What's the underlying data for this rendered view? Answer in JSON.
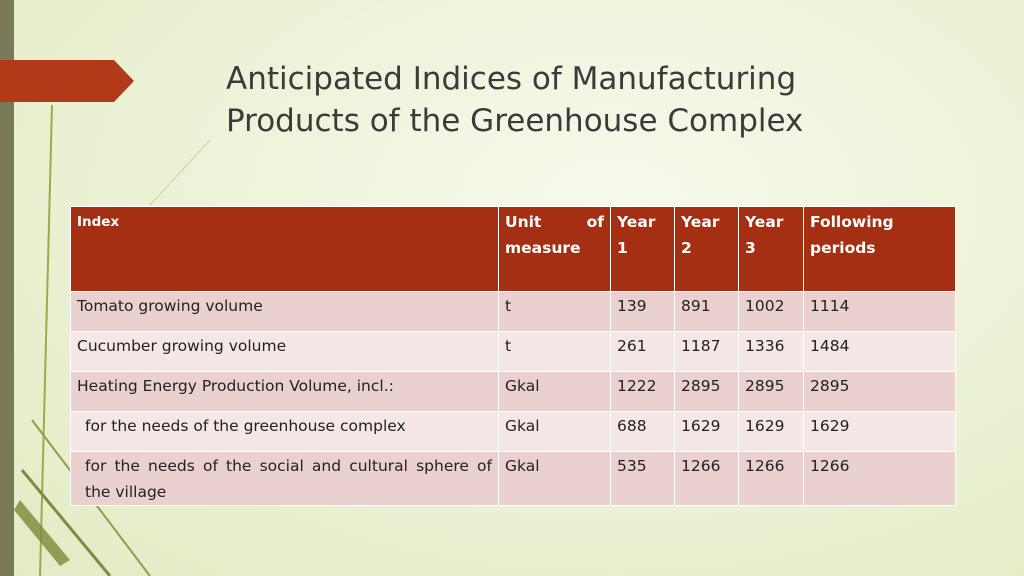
{
  "title": {
    "line1": "Anticipated Indices of Manufacturing",
    "line2": "Products of the Greenhouse Complex"
  },
  "table": {
    "headers": {
      "index": "Index",
      "unit": "Unit of measure",
      "year1": "Year 1",
      "year2": "Year 2",
      "year3": "Year 3",
      "following": "Following periods"
    },
    "rows": [
      {
        "index": "Tomato growing volume",
        "unit": "t",
        "year1": "139",
        "year2": "891",
        "year3": "1002",
        "following": "1114"
      },
      {
        "index": "Cucumber growing volume",
        "unit": "t",
        "year1": "261",
        "year2": "1187",
        "year3": "1336",
        "following": "1484"
      },
      {
        "index": "Heating Energy Production Volume, incl.:",
        "unit": "Gkal",
        "year1": "1222",
        "year2": "2895",
        "year3": "2895",
        "following": "2895"
      },
      {
        "index": "for the needs of the greenhouse complex",
        "unit": "Gkal",
        "year1": "688",
        "year2": "1629",
        "year3": "1629",
        "following": "1629"
      },
      {
        "index": "for the needs of the social and cultural sphere of the village",
        "unit": "Gkal",
        "year1": "535",
        "year2": "1266",
        "year3": "1266",
        "following": "1266"
      }
    ]
  },
  "colors": {
    "accent": "#b23a19",
    "header_bg": "#a52f12",
    "row_odd": "#ead1d0",
    "row_even": "#f4e7e6",
    "left_bar": "#7b7a58",
    "title_text": "#3b3b3b"
  }
}
